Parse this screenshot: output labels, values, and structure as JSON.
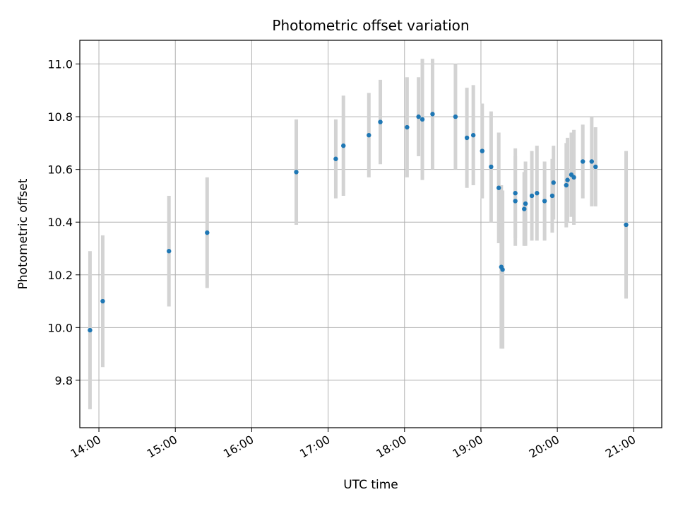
{
  "chart_data": {
    "type": "scatter",
    "title": "Photometric offset variation",
    "xlabel": "UTC time",
    "ylabel": "Photometric offset",
    "x_tick_labels": [
      "14:00",
      "15:00",
      "16:00",
      "17:00",
      "18:00",
      "19:00",
      "20:00",
      "21:00"
    ],
    "x_ticks": [
      "14:00",
      "15:00",
      "16:00",
      "17:00",
      "18:00",
      "19:00",
      "20:00",
      "21:00"
    ],
    "y_ticks": [
      9.8,
      10.0,
      10.2,
      10.4,
      10.6,
      10.8,
      11.0
    ],
    "y_tick_labels": [
      "9.8",
      "10.0",
      "10.2",
      "10.4",
      "10.6",
      "10.8",
      "11.0"
    ],
    "xlim": [
      "13:45",
      "21:22"
    ],
    "ylim": [
      9.62,
      11.09
    ],
    "grid": true,
    "point_color": "#1f77b4",
    "errorbar_color": "#d3d3d3",
    "points": [
      {
        "t": "13:53",
        "y": 9.99,
        "err": 0.3
      },
      {
        "t": "14:03",
        "y": 10.1,
        "err": 0.25
      },
      {
        "t": "14:55",
        "y": 10.29,
        "err": 0.21
      },
      {
        "t": "15:25",
        "y": 10.36,
        "err": 0.21
      },
      {
        "t": "16:35",
        "y": 10.59,
        "err": 0.2
      },
      {
        "t": "17:06",
        "y": 10.64,
        "err": 0.15
      },
      {
        "t": "17:12",
        "y": 10.69,
        "err": 0.19
      },
      {
        "t": "17:32",
        "y": 10.73,
        "err": 0.16
      },
      {
        "t": "17:41",
        "y": 10.78,
        "err": 0.16
      },
      {
        "t": "18:02",
        "y": 10.76,
        "err": 0.19
      },
      {
        "t": "18:11",
        "y": 10.8,
        "err": 0.15
      },
      {
        "t": "18:14",
        "y": 10.79,
        "err": 0.23
      },
      {
        "t": "18:22",
        "y": 10.81,
        "err": 0.21
      },
      {
        "t": "18:40",
        "y": 10.8,
        "err": 0.2
      },
      {
        "t": "18:49",
        "y": 10.72,
        "err": 0.19
      },
      {
        "t": "18:54",
        "y": 10.73,
        "err": 0.19
      },
      {
        "t": "19:01",
        "y": 10.67,
        "err": 0.18
      },
      {
        "t": "19:08",
        "y": 10.61,
        "err": 0.21
      },
      {
        "t": "19:14",
        "y": 10.53,
        "err": 0.21
      },
      {
        "t": "19:16",
        "y": 10.23,
        "err": 0.31
      },
      {
        "t": "19:17",
        "y": 10.22,
        "err": 0.3
      },
      {
        "t": "19:27",
        "y": 10.51,
        "err": 0.17
      },
      {
        "t": "19:27",
        "y": 10.48,
        "err": 0.17
      },
      {
        "t": "19:34",
        "y": 10.45,
        "err": 0.14
      },
      {
        "t": "19:35",
        "y": 10.47,
        "err": 0.16
      },
      {
        "t": "19:40",
        "y": 10.5,
        "err": 0.17
      },
      {
        "t": "19:44",
        "y": 10.51,
        "err": 0.18
      },
      {
        "t": "19:50",
        "y": 10.48,
        "err": 0.15
      },
      {
        "t": "19:56",
        "y": 10.5,
        "err": 0.14
      },
      {
        "t": "19:57",
        "y": 10.55,
        "err": 0.14
      },
      {
        "t": "20:07",
        "y": 10.54,
        "err": 0.16
      },
      {
        "t": "20:08",
        "y": 10.56,
        "err": 0.16
      },
      {
        "t": "20:11",
        "y": 10.58,
        "err": 0.16
      },
      {
        "t": "20:13",
        "y": 10.57,
        "err": 0.18
      },
      {
        "t": "20:20",
        "y": 10.63,
        "err": 0.14
      },
      {
        "t": "20:27",
        "y": 10.63,
        "err": 0.17
      },
      {
        "t": "20:30",
        "y": 10.61,
        "err": 0.15
      },
      {
        "t": "20:54",
        "y": 10.39,
        "err": 0.28
      }
    ]
  }
}
